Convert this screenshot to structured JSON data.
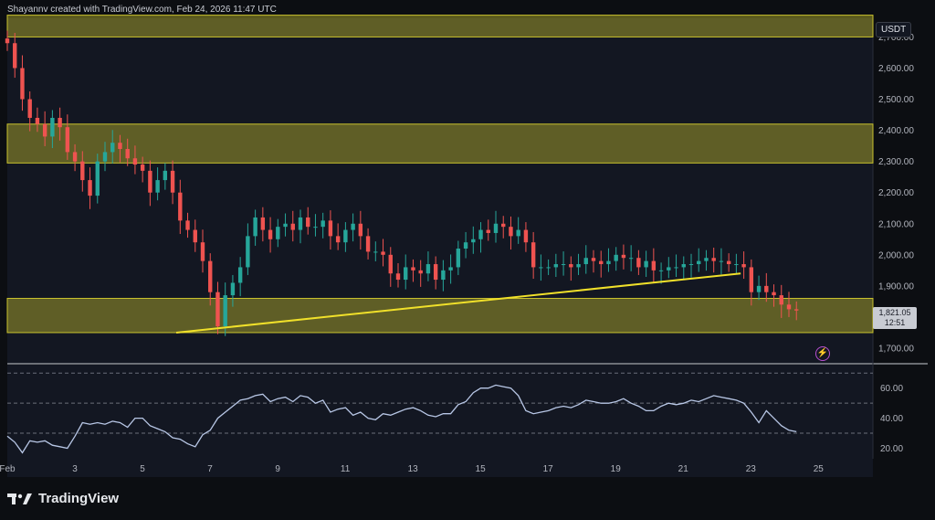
{
  "header": {
    "credit": "Shayannv created with TradingView.com, Feb 24, 2026 11:47 UTC"
  },
  "brand": {
    "name": "TradingView"
  },
  "currency": "USDT",
  "last_price": {
    "value": "1,821.05",
    "countdown": "12:51"
  },
  "icons": {
    "alert": "lightning-alert-icon",
    "logo": "tradingview-logo-icon"
  },
  "colors": {
    "up": "#26a69a",
    "down": "#ef5350",
    "zone": "#c9c22e",
    "trendline": "#f0e02a",
    "rsi": "#b8c7e6",
    "background": "#0c0e12"
  },
  "chart_data": [
    {
      "type": "candlestick",
      "title": "",
      "ylim": [
        1650,
        2760
      ],
      "xlim": [
        1.0,
        26.1
      ],
      "y_ticks": [
        "2,700.00",
        "2,600.00",
        "2,500.00",
        "2,400.00",
        "2,300.00",
        "2,200.00",
        "2,100.00",
        "2,000.00",
        "1,900.00",
        "1,700.00"
      ],
      "y_tick_values": [
        2700,
        2600,
        2500,
        2400,
        2300,
        2200,
        2100,
        2000,
        1900,
        1700
      ],
      "x_ticks": [
        "Feb",
        "3",
        "5",
        "7",
        "9",
        "11",
        "13",
        "15",
        "17",
        "19",
        "21",
        "23",
        "25"
      ],
      "x_tick_values": [
        1,
        3,
        5,
        7,
        9,
        11,
        13,
        15,
        17,
        19,
        21,
        23,
        25
      ],
      "zones": [
        {
          "y1": 2770,
          "y2": 2700
        },
        {
          "y1": 2420,
          "y2": 2295
        },
        {
          "y1": 1860,
          "y2": 1750
        }
      ],
      "trendline": {
        "x1": 6.0,
        "y1": 1750,
        "x2": 22.7,
        "y2": 1940
      },
      "closes": [
        2680,
        2600,
        2500,
        2440,
        2420,
        2380,
        2440,
        2410,
        2330,
        2300,
        2240,
        2190,
        2300,
        2330,
        2360,
        2340,
        2310,
        2290,
        2270,
        2200,
        2240,
        2270,
        2200,
        2110,
        2080,
        2040,
        1980,
        1880,
        1770,
        1870,
        1910,
        1960,
        2060,
        2120,
        2080,
        2050,
        2090,
        2100,
        2080,
        2120,
        2090,
        2090,
        2110,
        2060,
        2040,
        2080,
        2100,
        2060,
        2010,
        2010,
        2000,
        1940,
        1920,
        1960,
        1950,
        1940,
        1970,
        1920,
        1950,
        1960,
        2020,
        2040,
        2050,
        2080,
        2070,
        2100,
        2090,
        2060,
        2080,
        2040,
        1960,
        1960,
        1960,
        1970,
        1970,
        1960,
        1970,
        1990,
        1980,
        1970,
        1980,
        2000,
        1990,
        1990,
        1960,
        1980,
        1950,
        1950,
        1960,
        1960,
        1970,
        1970,
        1980,
        1990,
        1980,
        1980,
        1970,
        1970,
        1960,
        1880,
        1900,
        1880,
        1870,
        1840,
        1825,
        1821
      ],
      "rsi": {
        "ylim": [
          13,
          72
        ],
        "y_ticks": [
          "60.00",
          "40.00",
          "20.00"
        ],
        "y_tick_values": [
          60,
          40,
          20
        ],
        "levels": [
          70,
          50,
          30
        ],
        "values": [
          28,
          24,
          17,
          25,
          24,
          25,
          22,
          21,
          20,
          28,
          37,
          36,
          37,
          36,
          38,
          37,
          34,
          40,
          40,
          35,
          33,
          31,
          27,
          26,
          23,
          21,
          29,
          32,
          40,
          44,
          48,
          52,
          53,
          55,
          56,
          51,
          53,
          54,
          51,
          55,
          54,
          50,
          52,
          44,
          46,
          47,
          42,
          44,
          40,
          39,
          43,
          42,
          44,
          46,
          47,
          45,
          42,
          41,
          43,
          43,
          49,
          51,
          57,
          60,
          60,
          62,
          61,
          60,
          55,
          45,
          43,
          44,
          45,
          47,
          48,
          47,
          49,
          52,
          51,
          50,
          50,
          51,
          53,
          50,
          48,
          45,
          45,
          48,
          50,
          49,
          50,
          52,
          51,
          53,
          55,
          54,
          53,
          52,
          50,
          44,
          37,
          45,
          40,
          35,
          32,
          31
        ]
      }
    }
  ]
}
